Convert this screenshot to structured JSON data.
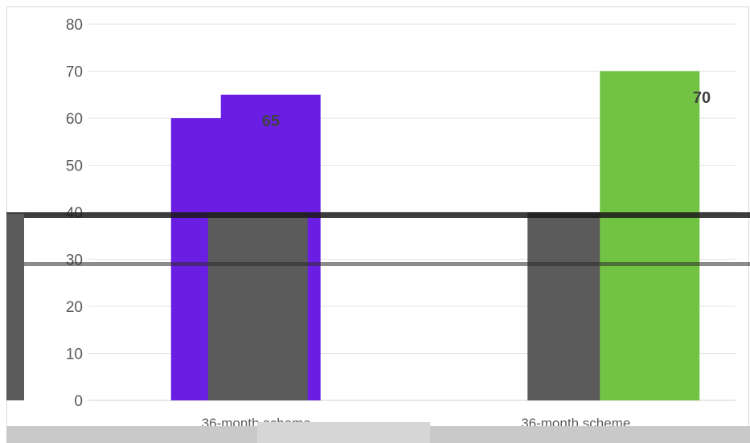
{
  "chart_data": {
    "type": "bar",
    "categories": [
      "36-month scheme",
      "36-month scheme"
    ],
    "series": [
      {
        "name": "",
        "color": "#6a1ee4",
        "values": [
          60,
          null
        ]
      },
      {
        "name": "",
        "color": "#6a1ee4",
        "values": [
          65,
          null
        ]
      },
      {
        "name": "",
        "color": "#5b5b5b",
        "values": [
          40,
          40
        ]
      },
      {
        "name": "",
        "color": "#72c244",
        "values": [
          null,
          70
        ]
      }
    ],
    "data_labels": [
      "65",
      "70"
    ],
    "y_ticks": [
      "0",
      "10",
      "20",
      "30",
      "40",
      "50",
      "60",
      "70",
      "80"
    ],
    "ylim": [
      0,
      80
    ],
    "ylabel": "",
    "xlabel": "",
    "title": "",
    "grid": true,
    "legend": "none"
  }
}
